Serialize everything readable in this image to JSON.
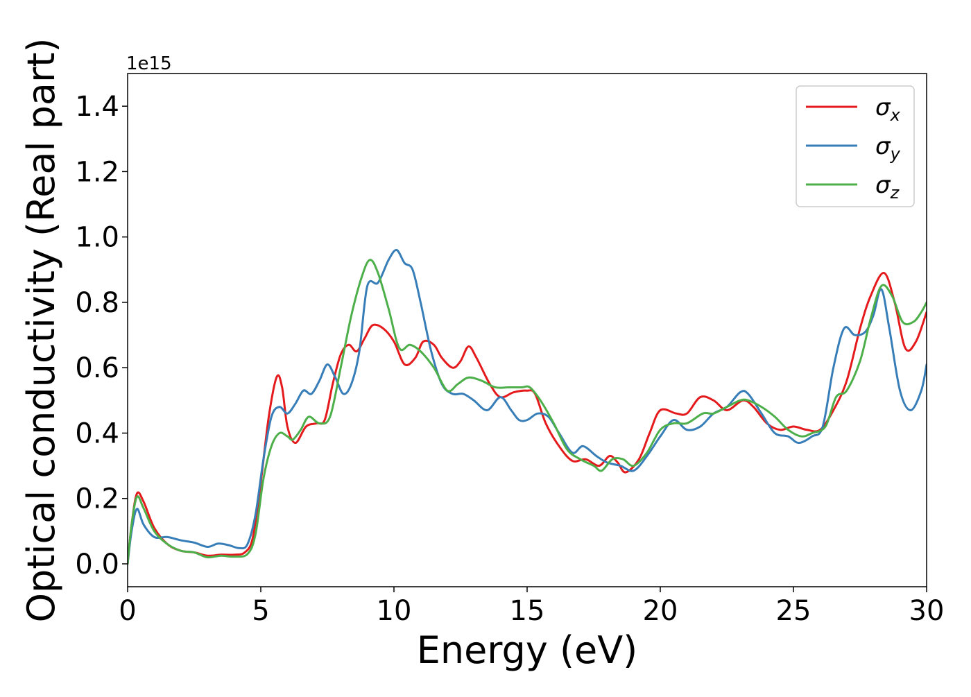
{
  "chart_data": {
    "type": "line",
    "xlabel": "Energy (eV)",
    "ylabel": "Optical conductivity (Real part)",
    "y_offset_text": "1e15",
    "xlim": [
      0,
      30
    ],
    "ylim": [
      -0.07,
      1.5
    ],
    "x_ticks": [
      0,
      5,
      10,
      15,
      20,
      25,
      30
    ],
    "y_ticks": [
      0.0,
      0.2,
      0.4,
      0.6,
      0.8,
      1.0,
      1.2,
      1.4
    ],
    "x_tick_labels": [
      "0",
      "5",
      "10",
      "15",
      "20",
      "25",
      "30"
    ],
    "y_tick_labels": [
      "0.0",
      "0.2",
      "0.4",
      "0.6",
      "0.8",
      "1.0",
      "1.2",
      "1.4"
    ],
    "grid": false,
    "legend_position": "top-right",
    "series": [
      {
        "name": "σx",
        "symbol": "σ",
        "subscript": "x",
        "color": "#e41a1c",
        "points": [
          [
            0,
            0.0
          ],
          [
            0.15,
            0.12
          ],
          [
            0.35,
            0.215
          ],
          [
            0.6,
            0.19
          ],
          [
            1.0,
            0.11
          ],
          [
            1.5,
            0.06
          ],
          [
            2.0,
            0.04
          ],
          [
            2.5,
            0.035
          ],
          [
            3.0,
            0.025
          ],
          [
            3.5,
            0.028
          ],
          [
            4.0,
            0.028
          ],
          [
            4.4,
            0.035
          ],
          [
            4.7,
            0.08
          ],
          [
            5.0,
            0.25
          ],
          [
            5.3,
            0.45
          ],
          [
            5.6,
            0.572
          ],
          [
            5.8,
            0.54
          ],
          [
            6.0,
            0.42
          ],
          [
            6.3,
            0.37
          ],
          [
            6.7,
            0.42
          ],
          [
            7.1,
            0.43
          ],
          [
            7.4,
            0.44
          ],
          [
            7.7,
            0.55
          ],
          [
            8.0,
            0.64
          ],
          [
            8.3,
            0.67
          ],
          [
            8.6,
            0.65
          ],
          [
            8.9,
            0.69
          ],
          [
            9.2,
            0.73
          ],
          [
            9.6,
            0.72
          ],
          [
            10.0,
            0.68
          ],
          [
            10.4,
            0.61
          ],
          [
            10.8,
            0.63
          ],
          [
            11.1,
            0.68
          ],
          [
            11.5,
            0.67
          ],
          [
            11.8,
            0.63
          ],
          [
            12.2,
            0.6
          ],
          [
            12.5,
            0.62
          ],
          [
            12.8,
            0.665
          ],
          [
            13.1,
            0.63
          ],
          [
            13.6,
            0.55
          ],
          [
            14.0,
            0.51
          ],
          [
            14.5,
            0.525
          ],
          [
            15.0,
            0.53
          ],
          [
            15.3,
            0.52
          ],
          [
            15.7,
            0.43
          ],
          [
            16.2,
            0.36
          ],
          [
            16.7,
            0.315
          ],
          [
            17.2,
            0.32
          ],
          [
            17.7,
            0.3
          ],
          [
            18.1,
            0.33
          ],
          [
            18.4,
            0.31
          ],
          [
            18.7,
            0.28
          ],
          [
            19.2,
            0.32
          ],
          [
            19.6,
            0.4
          ],
          [
            20.0,
            0.47
          ],
          [
            20.6,
            0.46
          ],
          [
            21.0,
            0.46
          ],
          [
            21.5,
            0.51
          ],
          [
            22.0,
            0.5
          ],
          [
            22.5,
            0.47
          ],
          [
            23.1,
            0.5
          ],
          [
            23.5,
            0.48
          ],
          [
            24.0,
            0.43
          ],
          [
            24.5,
            0.41
          ],
          [
            25.0,
            0.42
          ],
          [
            25.5,
            0.41
          ],
          [
            26.0,
            0.41
          ],
          [
            26.5,
            0.47
          ],
          [
            27.0,
            0.56
          ],
          [
            27.5,
            0.72
          ],
          [
            27.9,
            0.82
          ],
          [
            28.4,
            0.89
          ],
          [
            28.8,
            0.8
          ],
          [
            29.2,
            0.66
          ],
          [
            29.6,
            0.68
          ],
          [
            30.0,
            0.77
          ]
        ]
      },
      {
        "name": "σy",
        "symbol": "σ",
        "subscript": "y",
        "color": "#377eb8",
        "points": [
          [
            0,
            0.0
          ],
          [
            0.15,
            0.1
          ],
          [
            0.35,
            0.168
          ],
          [
            0.6,
            0.12
          ],
          [
            1.0,
            0.082
          ],
          [
            1.5,
            0.082
          ],
          [
            2.0,
            0.072
          ],
          [
            2.5,
            0.065
          ],
          [
            3.0,
            0.052
          ],
          [
            3.4,
            0.062
          ],
          [
            3.8,
            0.057
          ],
          [
            4.2,
            0.048
          ],
          [
            4.5,
            0.06
          ],
          [
            4.8,
            0.15
          ],
          [
            5.1,
            0.32
          ],
          [
            5.4,
            0.45
          ],
          [
            5.7,
            0.48
          ],
          [
            6.0,
            0.46
          ],
          [
            6.3,
            0.49
          ],
          [
            6.6,
            0.53
          ],
          [
            6.9,
            0.52
          ],
          [
            7.2,
            0.56
          ],
          [
            7.5,
            0.61
          ],
          [
            7.8,
            0.57
          ],
          [
            8.1,
            0.52
          ],
          [
            8.4,
            0.55
          ],
          [
            8.7,
            0.65
          ],
          [
            9.0,
            0.85
          ],
          [
            9.4,
            0.86
          ],
          [
            9.8,
            0.93
          ],
          [
            10.1,
            0.96
          ],
          [
            10.4,
            0.92
          ],
          [
            10.7,
            0.9
          ],
          [
            11.0,
            0.8
          ],
          [
            11.4,
            0.65
          ],
          [
            11.8,
            0.55
          ],
          [
            12.2,
            0.52
          ],
          [
            12.6,
            0.52
          ],
          [
            13.0,
            0.5
          ],
          [
            13.5,
            0.47
          ],
          [
            14.0,
            0.51
          ],
          [
            14.4,
            0.47
          ],
          [
            14.7,
            0.44
          ],
          [
            15.0,
            0.44
          ],
          [
            15.4,
            0.46
          ],
          [
            15.8,
            0.45
          ],
          [
            16.2,
            0.4
          ],
          [
            16.7,
            0.34
          ],
          [
            17.1,
            0.36
          ],
          [
            17.6,
            0.33
          ],
          [
            18.0,
            0.31
          ],
          [
            18.5,
            0.3
          ],
          [
            19.0,
            0.285
          ],
          [
            19.5,
            0.33
          ],
          [
            20.0,
            0.39
          ],
          [
            20.5,
            0.44
          ],
          [
            21.0,
            0.41
          ],
          [
            21.5,
            0.42
          ],
          [
            22.0,
            0.46
          ],
          [
            22.5,
            0.48
          ],
          [
            23.0,
            0.525
          ],
          [
            23.3,
            0.52
          ],
          [
            23.8,
            0.46
          ],
          [
            24.3,
            0.4
          ],
          [
            24.8,
            0.39
          ],
          [
            25.2,
            0.37
          ],
          [
            25.7,
            0.39
          ],
          [
            26.1,
            0.42
          ],
          [
            26.5,
            0.6
          ],
          [
            26.9,
            0.72
          ],
          [
            27.3,
            0.7
          ],
          [
            27.7,
            0.71
          ],
          [
            28.0,
            0.76
          ],
          [
            28.3,
            0.84
          ],
          [
            28.6,
            0.72
          ],
          [
            29.0,
            0.53
          ],
          [
            29.4,
            0.47
          ],
          [
            29.8,
            0.53
          ],
          [
            30.0,
            0.61
          ]
        ]
      },
      {
        "name": "σz",
        "symbol": "σ",
        "subscript": "z",
        "color": "#4daf4a",
        "points": [
          [
            0,
            0.0
          ],
          [
            0.15,
            0.12
          ],
          [
            0.35,
            0.205
          ],
          [
            0.6,
            0.17
          ],
          [
            1.0,
            0.1
          ],
          [
            1.5,
            0.06
          ],
          [
            2.0,
            0.04
          ],
          [
            2.5,
            0.035
          ],
          [
            3.0,
            0.02
          ],
          [
            3.5,
            0.025
          ],
          [
            4.0,
            0.022
          ],
          [
            4.5,
            0.03
          ],
          [
            4.8,
            0.09
          ],
          [
            5.1,
            0.26
          ],
          [
            5.4,
            0.36
          ],
          [
            5.7,
            0.4
          ],
          [
            6.0,
            0.39
          ],
          [
            6.2,
            0.38
          ],
          [
            6.5,
            0.41
          ],
          [
            6.8,
            0.45
          ],
          [
            7.2,
            0.43
          ],
          [
            7.6,
            0.45
          ],
          [
            8.0,
            0.6
          ],
          [
            8.4,
            0.76
          ],
          [
            8.8,
            0.88
          ],
          [
            9.1,
            0.93
          ],
          [
            9.4,
            0.89
          ],
          [
            9.8,
            0.78
          ],
          [
            10.2,
            0.66
          ],
          [
            10.6,
            0.67
          ],
          [
            11.0,
            0.65
          ],
          [
            11.5,
            0.6
          ],
          [
            12.0,
            0.53
          ],
          [
            12.4,
            0.55
          ],
          [
            12.8,
            0.57
          ],
          [
            13.3,
            0.56
          ],
          [
            13.8,
            0.54
          ],
          [
            14.3,
            0.54
          ],
          [
            14.8,
            0.54
          ],
          [
            15.1,
            0.54
          ],
          [
            15.5,
            0.5
          ],
          [
            16.0,
            0.43
          ],
          [
            16.5,
            0.35
          ],
          [
            17.0,
            0.32
          ],
          [
            17.5,
            0.3
          ],
          [
            17.8,
            0.285
          ],
          [
            18.2,
            0.32
          ],
          [
            18.6,
            0.32
          ],
          [
            19.0,
            0.3
          ],
          [
            19.5,
            0.34
          ],
          [
            20.0,
            0.41
          ],
          [
            20.5,
            0.43
          ],
          [
            21.0,
            0.43
          ],
          [
            21.6,
            0.46
          ],
          [
            22.0,
            0.46
          ],
          [
            22.5,
            0.48
          ],
          [
            23.0,
            0.5
          ],
          [
            23.3,
            0.5
          ],
          [
            23.8,
            0.48
          ],
          [
            24.3,
            0.45
          ],
          [
            24.8,
            0.41
          ],
          [
            25.3,
            0.39
          ],
          [
            25.7,
            0.4
          ],
          [
            26.2,
            0.42
          ],
          [
            26.6,
            0.51
          ],
          [
            27.0,
            0.53
          ],
          [
            27.5,
            0.62
          ],
          [
            27.9,
            0.75
          ],
          [
            28.3,
            0.85
          ],
          [
            28.7,
            0.82
          ],
          [
            29.1,
            0.74
          ],
          [
            29.5,
            0.74
          ],
          [
            29.8,
            0.77
          ],
          [
            30.0,
            0.8
          ]
        ]
      }
    ]
  }
}
